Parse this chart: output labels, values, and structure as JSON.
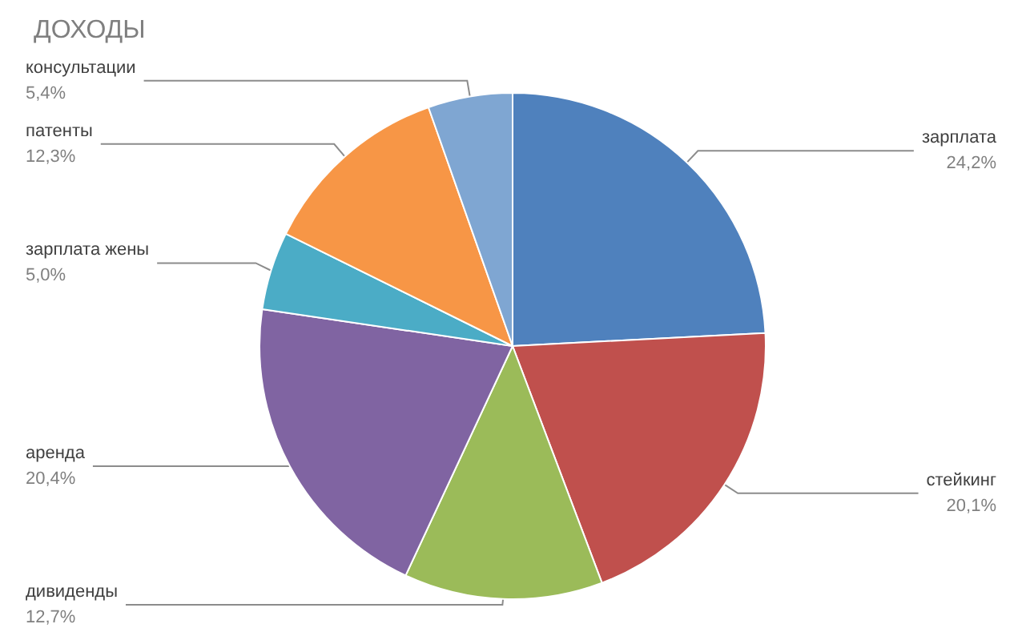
{
  "chart_data": {
    "type": "pie",
    "title": "ДОХОДЫ",
    "categories": [
      "зарплата",
      "стейкинг",
      "дивиденды",
      "аренда",
      "зарплата жены",
      "патенты",
      "консультации"
    ],
    "values": [
      24.2,
      20.1,
      12.7,
      20.4,
      5.0,
      12.3,
      5.4
    ],
    "value_labels": [
      "24,2%",
      "20,1%",
      "12,7%",
      "20,4%",
      "5,0%",
      "12,3%",
      "5,4%"
    ],
    "colors": [
      "#4f81bd",
      "#c0504d",
      "#9bbb59",
      "#8064a2",
      "#4bacc6",
      "#f79646",
      "#7fa6d2"
    ]
  }
}
